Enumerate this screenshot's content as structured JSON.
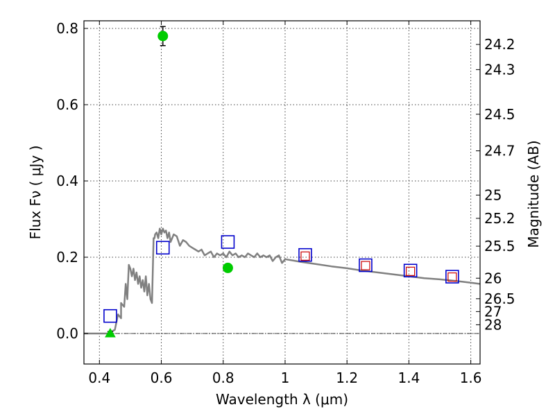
{
  "chart_data": {
    "type": "scatter",
    "title": "",
    "xlabel": "Wavelength  λ (μm)",
    "ylabel": "Flux  Fν  ( μJy )",
    "ylabel_right": "Magnitude (AB)",
    "xlim": [
      0.35,
      1.63
    ],
    "ylim": [
      -0.08,
      0.82
    ],
    "grid": true,
    "x_ticks": [
      0.4,
      0.6,
      0.8,
      1.0,
      1.2,
      1.4,
      1.6
    ],
    "x_tick_labels": [
      "0.4",
      "0.6",
      "0.8",
      "1",
      "1.2",
      "1.4",
      "1.6"
    ],
    "y_ticks": [
      0.0,
      0.2,
      0.4,
      0.6,
      0.8
    ],
    "y_tick_labels": [
      "0.0",
      "0.2",
      "0.4",
      "0.6",
      "0.8"
    ],
    "right_ticks": [
      {
        "label": "24.2",
        "flux": 0.758
      },
      {
        "label": "24.3",
        "flux": 0.692
      },
      {
        "label": "24.5",
        "flux": 0.575
      },
      {
        "label": "24.7",
        "flux": 0.479
      },
      {
        "label": "25",
        "flux": 0.363
      },
      {
        "label": "25.2",
        "flux": 0.302
      },
      {
        "label": "25.5",
        "flux": 0.229
      },
      {
        "label": "26",
        "flux": 0.145
      },
      {
        "label": "26.5",
        "flux": 0.0912
      },
      {
        "label": "27",
        "flux": 0.0575
      },
      {
        "label": "28",
        "flux": 0.0229
      }
    ],
    "zero_line": 0.0,
    "series": [
      {
        "kind": "model",
        "color": "#808080",
        "x": [
          0.35,
          0.4,
          0.43,
          0.45,
          0.46,
          0.47,
          0.47,
          0.48,
          0.485,
          0.49,
          0.495,
          0.5,
          0.505,
          0.51,
          0.515,
          0.52,
          0.525,
          0.53,
          0.535,
          0.54,
          0.545,
          0.55,
          0.555,
          0.56,
          0.565,
          0.57,
          0.575,
          0.578,
          0.58,
          0.585,
          0.59,
          0.595,
          0.6,
          0.605,
          0.61,
          0.615,
          0.62,
          0.625,
          0.63,
          0.64,
          0.65,
          0.66,
          0.67,
          0.68,
          0.69,
          0.7,
          0.71,
          0.72,
          0.73,
          0.74,
          0.75,
          0.76,
          0.77,
          0.78,
          0.79,
          0.8,
          0.81,
          0.82,
          0.83,
          0.84,
          0.85,
          0.86,
          0.87,
          0.88,
          0.89,
          0.9,
          0.91,
          0.92,
          0.93,
          0.94,
          0.95,
          0.96,
          0.97,
          0.98,
          0.99,
          1.0,
          1.05,
          1.1,
          1.15,
          1.2,
          1.25,
          1.3,
          1.35,
          1.4,
          1.45,
          1.5,
          1.55,
          1.6,
          1.63
        ],
        "y": [
          0.0,
          0.0,
          0.0,
          0.01,
          0.05,
          0.04,
          0.08,
          0.07,
          0.13,
          0.09,
          0.18,
          0.17,
          0.15,
          0.17,
          0.14,
          0.16,
          0.13,
          0.15,
          0.12,
          0.14,
          0.11,
          0.15,
          0.1,
          0.13,
          0.09,
          0.08,
          0.25,
          0.25,
          0.26,
          0.265,
          0.25,
          0.275,
          0.26,
          0.275,
          0.265,
          0.27,
          0.25,
          0.265,
          0.24,
          0.26,
          0.255,
          0.23,
          0.245,
          0.24,
          0.23,
          0.225,
          0.22,
          0.215,
          0.22,
          0.205,
          0.21,
          0.215,
          0.2,
          0.21,
          0.205,
          0.21,
          0.2,
          0.215,
          0.205,
          0.21,
          0.2,
          0.205,
          0.2,
          0.21,
          0.205,
          0.2,
          0.21,
          0.2,
          0.205,
          0.2,
          0.205,
          0.19,
          0.2,
          0.205,
          0.185,
          0.195,
          0.188,
          0.182,
          0.176,
          0.171,
          0.165,
          0.16,
          0.155,
          0.15,
          0.145,
          0.142,
          0.138,
          0.133,
          0.13
        ]
      },
      {
        "kind": "model-photometry",
        "marker": "square",
        "color": "#0000cc",
        "x": [
          0.435,
          0.605,
          0.815,
          1.065,
          1.26,
          1.405,
          1.54
        ],
        "y": [
          0.046,
          0.225,
          0.24,
          0.206,
          0.179,
          0.165,
          0.149
        ]
      },
      {
        "kind": "upper-limits",
        "marker": "small-square",
        "color": "#cc0000",
        "x": [
          1.065,
          1.26,
          1.405,
          1.54
        ],
        "y": [
          0.203,
          0.178,
          0.163,
          0.148
        ]
      },
      {
        "kind": "detections",
        "marker": "circle",
        "color": "#00cc00",
        "x": [
          0.605,
          0.815
        ],
        "y": [
          0.78,
          0.172
        ],
        "yerr": [
          0.025,
          0.008
        ]
      },
      {
        "kind": "non-detection",
        "marker": "triangle",
        "color": "#00cc00",
        "x": [
          0.435
        ],
        "y": [
          0.0
        ],
        "yerr": [
          0.005
        ]
      }
    ]
  }
}
